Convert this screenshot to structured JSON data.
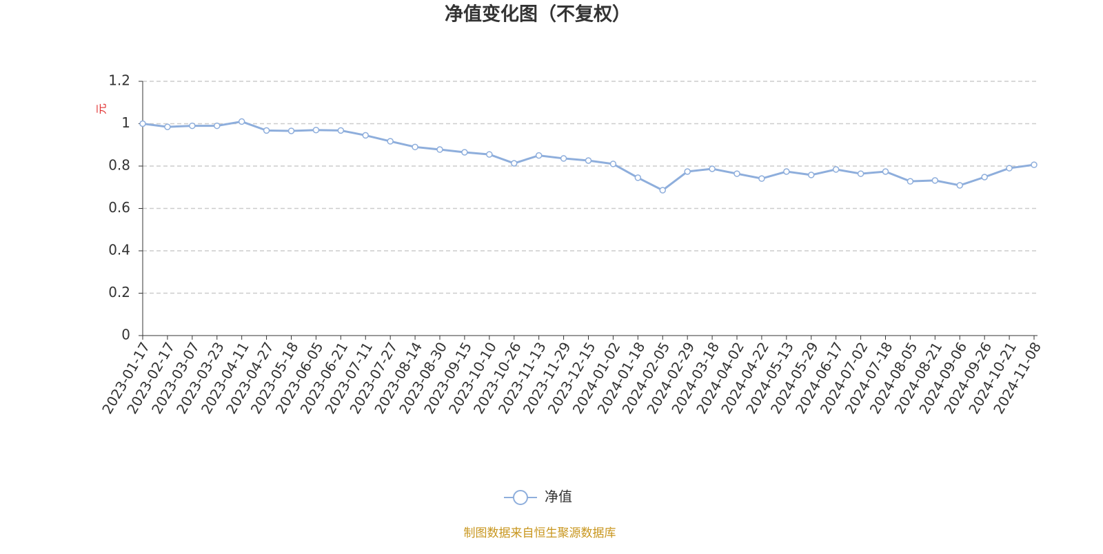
{
  "chart_data": {
    "type": "line",
    "title": "净值变化图（不复权）",
    "y_label": "元",
    "categories": [
      "2023-01-17",
      "2023-02-17",
      "2023-03-07",
      "2023-03-23",
      "2023-04-11",
      "2023-04-27",
      "2023-05-18",
      "2023-06-05",
      "2023-06-21",
      "2023-07-11",
      "2023-07-27",
      "2023-08-14",
      "2023-08-30",
      "2023-09-15",
      "2023-10-10",
      "2023-10-26",
      "2023-11-13",
      "2023-11-29",
      "2023-12-15",
      "2024-01-02",
      "2024-01-18",
      "2024-02-05",
      "2024-02-29",
      "2024-03-18",
      "2024-04-02",
      "2024-04-22",
      "2024-05-13",
      "2024-05-29",
      "2024-06-17",
      "2024-07-02",
      "2024-07-18",
      "2024-08-05",
      "2024-08-21",
      "2024-09-06",
      "2024-09-26",
      "2024-10-21",
      "2024-11-08"
    ],
    "series": [
      {
        "name": "净值",
        "color": "#8eaedc",
        "values": [
          1.0,
          0.985,
          0.99,
          0.99,
          1.01,
          0.968,
          0.966,
          0.97,
          0.968,
          0.945,
          0.917,
          0.89,
          0.878,
          0.865,
          0.855,
          0.813,
          0.85,
          0.836,
          0.826,
          0.81,
          0.745,
          0.686,
          0.774,
          0.787,
          0.764,
          0.741,
          0.774,
          0.758,
          0.784,
          0.764,
          0.774,
          0.728,
          0.732,
          0.709,
          0.748,
          0.79,
          0.806
        ]
      }
    ],
    "ylim": [
      0,
      1.2
    ],
    "yticks": [
      0,
      0.2,
      0.4,
      0.6,
      0.8,
      1,
      1.2
    ],
    "grid": true,
    "source": "制图数据来自恒生聚源数据库"
  }
}
